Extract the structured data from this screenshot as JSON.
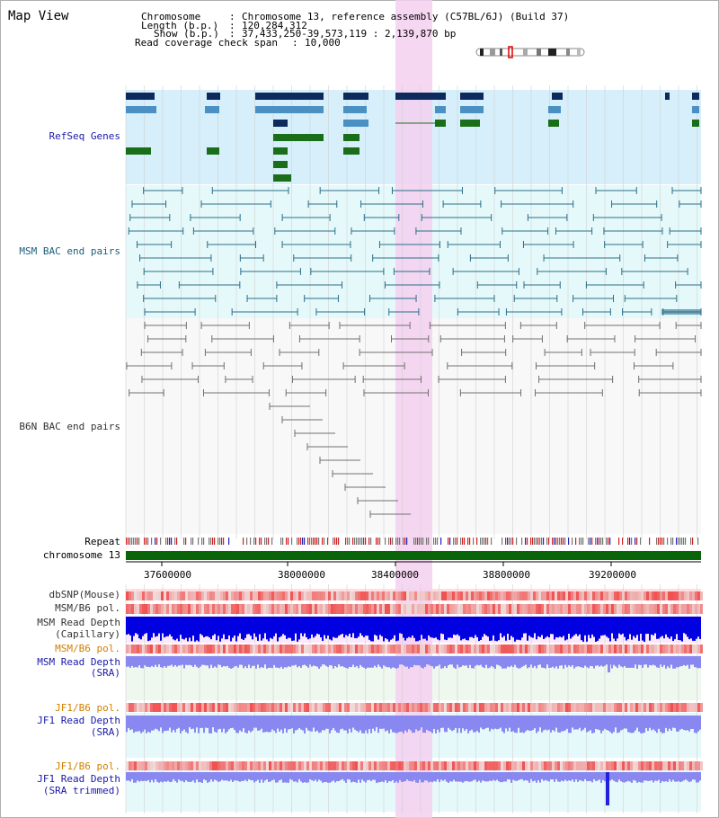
{
  "title": "Map View",
  "header": {
    "chromosome_key": "Chromosome",
    "chromosome_val": "Chromosome 13, reference assembly (C57BL/6J) (Build 37)",
    "length_key": "Length (b.p.)",
    "length_val": "120,284,312",
    "show_key": "Show (b.p.)",
    "show_val": "37,433,250-39,573,119 : 2,139,870 bp",
    "span_key": "Read coverage check span",
    "span_val": "10,000"
  },
  "tracks": {
    "refseq": "RefSeq Genes",
    "msm_bac": "MSM BAC end pairs",
    "b6n_bac": "B6N BAC end pairs",
    "repeat": "Repeat",
    "chromosome": "chromosome 13",
    "dbsnp": "dbSNP(Mouse)",
    "msm_b6_pol_1": "MSM/B6 pol.",
    "msm_depth_cap_1": "MSM Read Depth",
    "msm_depth_cap_2": "(Capillary)",
    "msm_b6_pol_2": "MSM/B6 pol.",
    "msm_depth_sra_1": "MSM Read Depth",
    "msm_depth_sra_2": "(SRA)",
    "jf1_b6_pol_1": "JF1/B6 pol.",
    "jf1_depth_sra_1": "JF1 Read Depth",
    "jf1_depth_sra_2": "(SRA)",
    "jf1_b6_pol_2": "JF1/B6 pol.",
    "jf1_depth_trim_1": "JF1 Read Depth",
    "jf1_depth_trim_2": "(SRA trimmed)"
  },
  "axis_ticks": [
    "37600000",
    "38000000",
    "38400000",
    "38800000",
    "39200000"
  ],
  "colors": {
    "highlight": "#f5d0f0",
    "refseq_bg": "#d6effa",
    "msm_bg": "#e6f9fa",
    "b6n_bg": "#f8f8f8",
    "gene_dark": "#0d2a5e",
    "gene_mid": "#4a90c2",
    "gene_green": "#1a6e1a",
    "chromosome_bar": "#0a640a",
    "depth_dark": "#0000e0",
    "depth_light": "#8888f0"
  }
}
